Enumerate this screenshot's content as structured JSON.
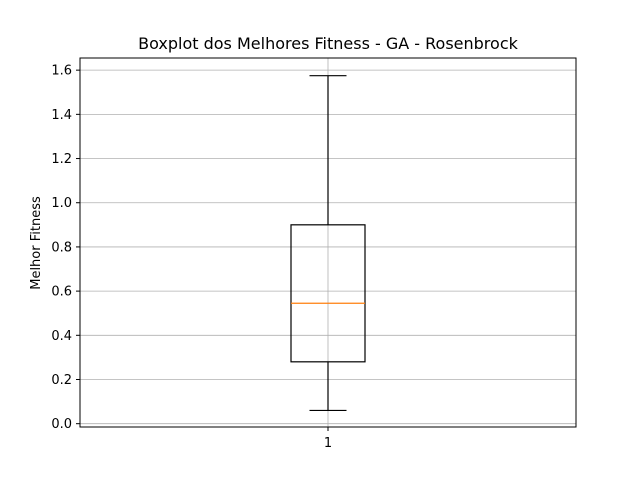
{
  "chart_data": {
    "type": "boxplot",
    "title": "Boxplot dos Melhores Fitness - GA - Rosenbrock",
    "xlabel": "",
    "ylabel": "Melhor Fitness",
    "categories": [
      "1"
    ],
    "boxes": [
      {
        "category": "1",
        "whisker_low": 0.06,
        "q1": 0.28,
        "median": 0.545,
        "q3": 0.9,
        "whisker_high": 1.575
      }
    ],
    "ylim": [
      -0.015,
      1.655
    ],
    "yticks": [
      0.0,
      0.2,
      0.4,
      0.6,
      0.8,
      1.0,
      1.2,
      1.4,
      1.6
    ],
    "ytick_labels": [
      "0.0",
      "0.2",
      "0.4",
      "0.6",
      "0.8",
      "1.0",
      "1.2",
      "1.4",
      "1.6"
    ],
    "grid": true,
    "colors": {
      "box": "#000000",
      "median": "#ff7f0e",
      "grid": "#b0b0b0"
    }
  }
}
